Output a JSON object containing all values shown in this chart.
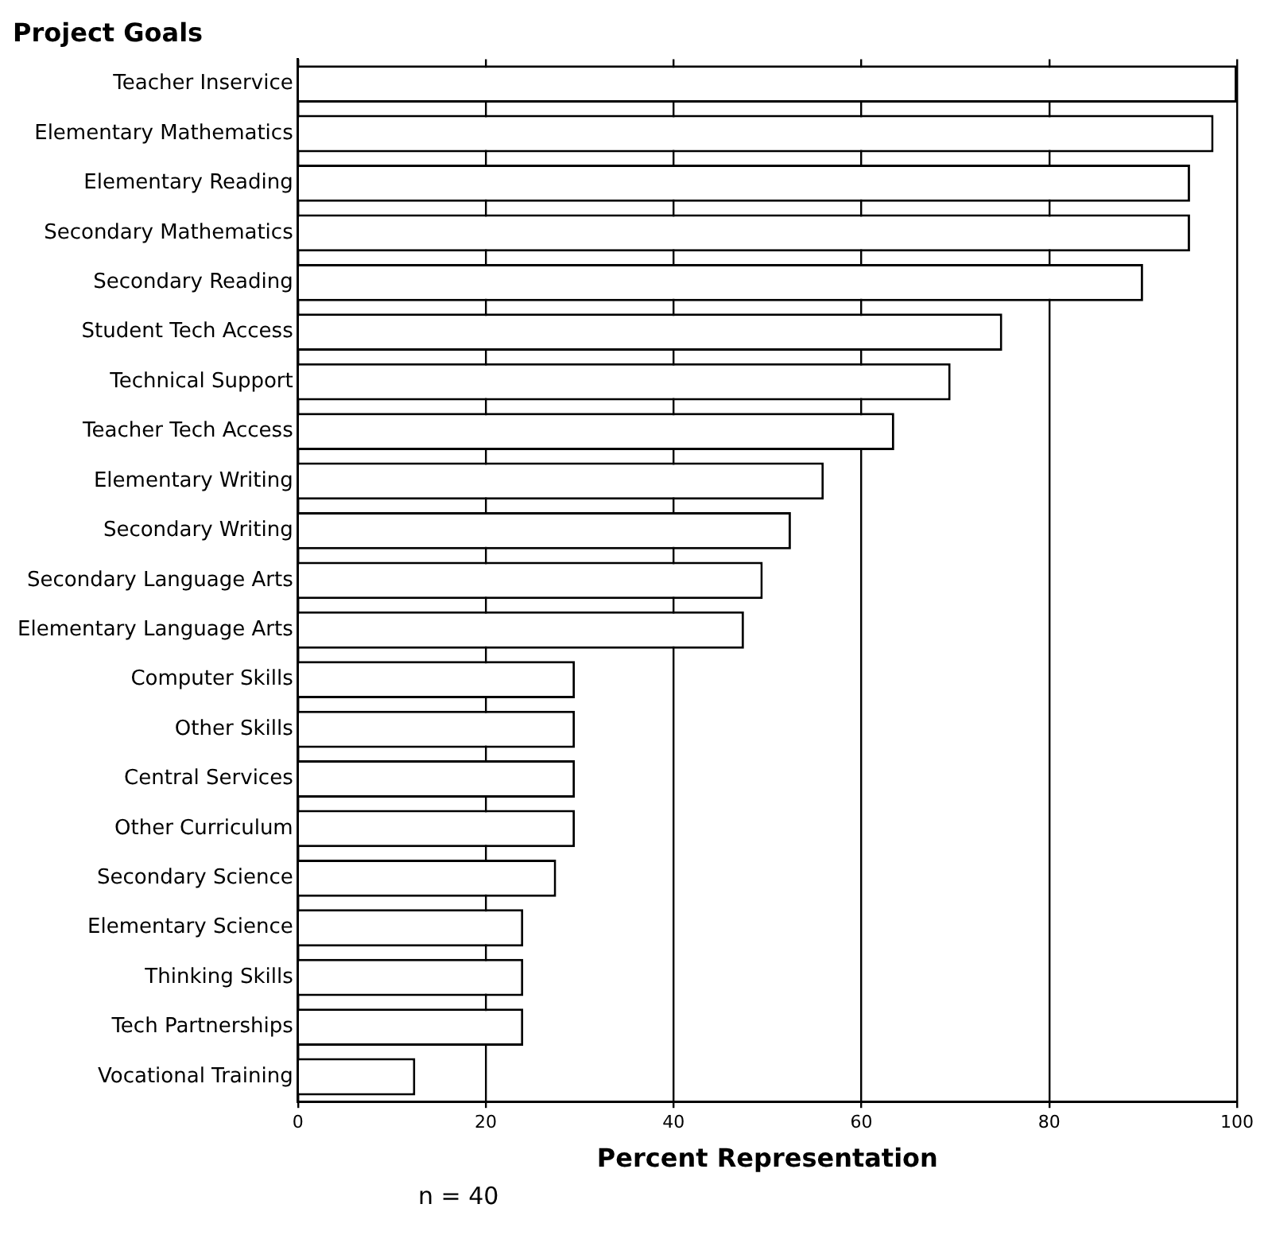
{
  "chart_data": {
    "type": "bar",
    "orientation": "horizontal",
    "title": "Project Goals",
    "xlabel": "Percent Representation",
    "categories": [
      "Teacher Inservice",
      "Elementary Mathematics",
      "Elementary Reading",
      "Secondary Mathematics",
      "Secondary Reading",
      "Student Tech Access",
      "Technical Support",
      "Teacher Tech Access",
      "Elementary Writing",
      "Secondary Writing",
      "Secondary Language Arts",
      "Elementary Language Arts",
      "Computer Skills",
      "Other Skills",
      "Central Services",
      "Other Curriculum",
      "Secondary Science",
      "Elementary Science",
      "Thinking Skills",
      "Tech Partnerships",
      "Vocational Training"
    ],
    "values": [
      100,
      97.5,
      95,
      95,
      90,
      75,
      69.5,
      63.5,
      56,
      52.5,
      49.5,
      47.5,
      29.5,
      29.5,
      29.5,
      29.5,
      27.5,
      24,
      24,
      24,
      12.5
    ],
    "color": "#ffffff",
    "xlim": [
      0,
      100
    ],
    "xticks": [
      0,
      20,
      40,
      60,
      80,
      100
    ],
    "grid": "x",
    "legend": false,
    "annotations": [
      "n = 40"
    ]
  }
}
